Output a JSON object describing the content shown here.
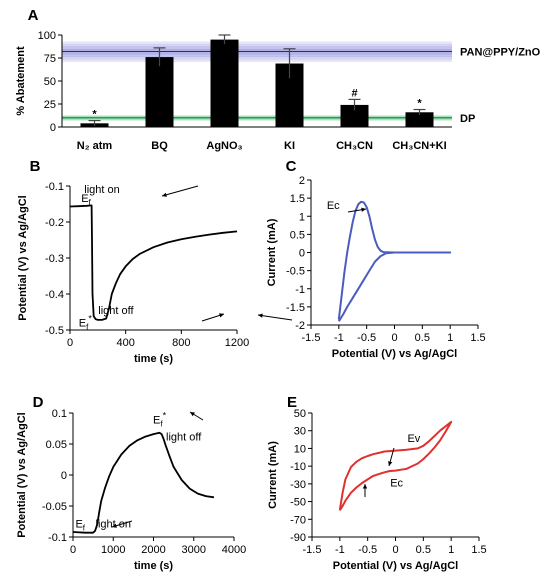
{
  "chart_data": [
    {
      "panel": "A",
      "type": "bar",
      "ylabel": "% Abatement",
      "ylim": [
        0,
        100
      ],
      "yticks": [
        "0",
        "25",
        "50",
        "75",
        "100"
      ],
      "categories": [
        "N₂ atm",
        "BQ",
        "AgNO₃",
        "KI",
        "CH₃CN",
        "CH₃CN+KI"
      ],
      "values": [
        4,
        76,
        95,
        69,
        24,
        16
      ],
      "errors": [
        3,
        10,
        5,
        16,
        6,
        3
      ],
      "significance": [
        "*",
        "",
        "",
        "",
        "#",
        "*"
      ],
      "bands": [
        {
          "name": "PAN@PPY/ZnO",
          "center": 82,
          "low": 71,
          "high": 93,
          "color": "#7777d6"
        },
        {
          "name": "DP",
          "center": 10,
          "low": 7,
          "high": 13,
          "color": "#3fbf6a"
        }
      ],
      "bar_color": "#000000"
    },
    {
      "panel": "B",
      "type": "line",
      "xlabel": "time (s)",
      "ylabel": "Potential (V) vs Ag/AgCl",
      "xlim": [
        0,
        1200
      ],
      "ylim": [
        -0.5,
        -0.1
      ],
      "y_reversed": true,
      "xticks": [
        "0",
        "400",
        "800",
        "1200"
      ],
      "yticks": [
        "-0.1",
        "-0.2",
        "-0.3",
        "-0.4",
        "-0.5"
      ],
      "line_color": "#000000",
      "x": [
        0,
        60,
        120,
        155,
        158,
        162,
        170,
        185,
        200,
        230,
        260,
        280,
        300,
        330,
        360,
        400,
        450,
        500,
        600,
        700,
        800,
        900,
        1000,
        1100,
        1200
      ],
      "y": [
        -0.157,
        -0.156,
        -0.155,
        -0.154,
        -0.25,
        -0.4,
        -0.462,
        -0.47,
        -0.472,
        -0.472,
        -0.468,
        -0.44,
        -0.4,
        -0.37,
        -0.345,
        -0.323,
        -0.303,
        -0.289,
        -0.27,
        -0.257,
        -0.248,
        -0.241,
        -0.235,
        -0.23,
        -0.226
      ],
      "annotations": [
        {
          "text": "E",
          "sub": "f",
          "x": 115,
          "y": -0.145
        },
        {
          "text": "light on",
          "x": 230,
          "y": -0.12
        },
        {
          "text": "E",
          "sub": "f",
          "sup": "*",
          "x": 110,
          "y": -0.49
        },
        {
          "text": "light off",
          "x": 330,
          "y": -0.455
        }
      ]
    },
    {
      "panel": "C",
      "type": "line",
      "xlabel": "Potential (V) vs Ag/AgCl",
      "ylabel": "Current (mA)",
      "xlim": [
        -1.5,
        1.5
      ],
      "ylim": [
        -2,
        2
      ],
      "xticks": [
        "-1.5",
        "-1",
        "-0.5",
        "0",
        "0.5",
        "1",
        "1.5"
      ],
      "yticks": [
        "2",
        "1.5",
        "1",
        "0.5",
        "0",
        "-0.5",
        "-1",
        "-1.5",
        "-2"
      ],
      "line_color": "#4a5cc0",
      "x": [
        -1.0,
        -0.95,
        -0.9,
        -0.85,
        -0.8,
        -0.75,
        -0.7,
        -0.65,
        -0.6,
        -0.55,
        -0.5,
        -0.45,
        -0.4,
        -0.35,
        -0.3,
        -0.25,
        -0.2,
        0.0,
        0.3,
        0.6,
        1.0,
        0.6,
        0.3,
        0.0,
        -0.15,
        -0.25,
        -0.35,
        -0.45,
        -0.55,
        -0.65,
        -0.75,
        -0.85,
        -0.92,
        -1.0
      ],
      "y": [
        -1.85,
        -1.2,
        -0.55,
        0.0,
        0.45,
        0.85,
        1.15,
        1.33,
        1.4,
        1.38,
        1.25,
        1.0,
        0.65,
        0.35,
        0.15,
        0.05,
        0.01,
        0.0,
        0.0,
        0.0,
        0.0,
        0.0,
        0.0,
        0.0,
        -0.02,
        -0.1,
        -0.25,
        -0.5,
        -0.75,
        -1.0,
        -1.25,
        -1.5,
        -1.7,
        -1.9
      ],
      "annotations": [
        {
          "text": "Ec",
          "x": -1.1,
          "y": 1.2
        }
      ]
    },
    {
      "panel": "D",
      "type": "line",
      "xlabel": "time (s)",
      "ylabel": "Potential (V) vs Ag/AgCl",
      "xlim": [
        0,
        4000
      ],
      "ylim": [
        -0.1,
        0.1
      ],
      "xticks": [
        "0",
        "1000",
        "2000",
        "3000",
        "4000"
      ],
      "yticks": [
        "0.1",
        "0.05",
        "0",
        "-0.05",
        "-0.1"
      ],
      "line_color": "#000000",
      "x": [
        0,
        300,
        500,
        550,
        600,
        650,
        700,
        800,
        900,
        1000,
        1200,
        1400,
        1600,
        1800,
        2000,
        2150,
        2200,
        2250,
        2300,
        2400,
        2500,
        2700,
        2900,
        3100,
        3300,
        3500
      ],
      "y": [
        -0.092,
        -0.093,
        -0.093,
        -0.09,
        -0.08,
        -0.06,
        -0.042,
        -0.02,
        -0.002,
        0.013,
        0.033,
        0.047,
        0.056,
        0.062,
        0.066,
        0.068,
        0.066,
        0.058,
        0.048,
        0.03,
        0.013,
        -0.008,
        -0.022,
        -0.03,
        -0.034,
        -0.036
      ],
      "annotations": [
        {
          "text": "E",
          "sub": "f",
          "x": 180,
          "y": -0.085
        },
        {
          "text": "light on",
          "x": 1000,
          "y": -0.085
        },
        {
          "text": "E",
          "sub": "f",
          "sup": "*",
          "x": 2150,
          "y": 0.083
        },
        {
          "text": "light off",
          "x": 2750,
          "y": 0.056
        }
      ]
    },
    {
      "panel": "E",
      "type": "line",
      "xlabel": "Potential (V) vs Ag/AgCl",
      "ylabel": "Current (mA)",
      "xlim": [
        -1.5,
        1.5
      ],
      "ylim": [
        -90,
        50
      ],
      "xticks": [
        "-1.5",
        "-1",
        "-0.5",
        "0",
        "0.5",
        "1",
        "1.5"
      ],
      "yticks": [
        "50",
        "30",
        "10",
        "-10",
        "-30",
        "-50",
        "-70",
        "-90"
      ],
      "line_color": "#e03030",
      "x": [
        -1.0,
        -0.95,
        -0.9,
        -0.8,
        -0.7,
        -0.6,
        -0.5,
        -0.4,
        -0.3,
        -0.2,
        0.0,
        0.2,
        0.4,
        0.5,
        0.6,
        0.7,
        0.8,
        0.9,
        1.0,
        0.9,
        0.8,
        0.7,
        0.6,
        0.5,
        0.4,
        0.3,
        0.2,
        0.1,
        0.0,
        -0.1,
        -0.2,
        -0.3,
        -0.4,
        -0.5,
        -0.6,
        -0.7,
        -0.8,
        -0.9,
        -0.95,
        -1.0
      ],
      "y": [
        -60,
        -40,
        -25,
        -11,
        -5,
        -1,
        1.5,
        3.5,
        5,
        6.5,
        7.5,
        8.5,
        10,
        13,
        18,
        24,
        30,
        35,
        40,
        29,
        19,
        11,
        4,
        -2,
        -7,
        -10,
        -13,
        -14,
        -15,
        -15.5,
        -17,
        -19,
        -21,
        -25,
        -29,
        -34,
        -40,
        -49,
        -55,
        -60
      ],
      "annotations": [
        {
          "text": "Ev",
          "x": 0.33,
          "y": 17
        },
        {
          "text": "Ec",
          "x": 0.02,
          "y": -33
        }
      ]
    }
  ]
}
